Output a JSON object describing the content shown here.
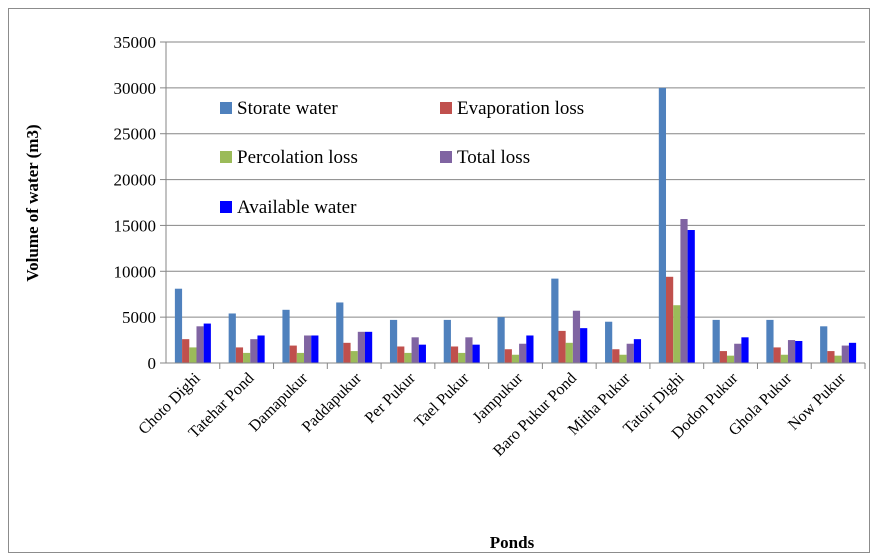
{
  "chart_data": {
    "type": "bar",
    "title": "",
    "xlabel": "Ponds",
    "ylabel": "Volume of water (m3)",
    "ylim": [
      0,
      35000
    ],
    "yticks": [
      0,
      5000,
      10000,
      15000,
      20000,
      25000,
      30000,
      35000
    ],
    "grid": true,
    "legend_position": "top-left inside plot",
    "categories": [
      "Choto Dighi",
      "Tatehar Pond",
      "Damapukur",
      "Paddapukur",
      "Per Pukur",
      "Tael Pukur",
      "Jampukur",
      "Baro Pukur Pond",
      "Mitha Pukur",
      "Tatoir Dighi",
      "Dodon Pukur",
      "Ghola Pukur",
      "Now Pukur"
    ],
    "series": [
      {
        "name": "Storate water",
        "color": "#4f81bd",
        "values": [
          8100,
          5400,
          5800,
          6600,
          4700,
          4700,
          5000,
          9200,
          4500,
          30000,
          4700,
          4700,
          4000
        ]
      },
      {
        "name": "Evaporation loss",
        "color": "#c0504d",
        "values": [
          2600,
          1700,
          1900,
          2200,
          1800,
          1800,
          1500,
          3500,
          1500,
          9400,
          1300,
          1700,
          1300
        ]
      },
      {
        "name": "Percolation loss",
        "color": "#9bbb59",
        "values": [
          1700,
          1100,
          1100,
          1300,
          1100,
          1100,
          900,
          2200,
          900,
          6300,
          800,
          900,
          800
        ]
      },
      {
        "name": "Total loss",
        "color": "#8064a2",
        "values": [
          4000,
          2600,
          3000,
          3400,
          2800,
          2800,
          2100,
          5700,
          2100,
          15700,
          2100,
          2500,
          1900
        ]
      },
      {
        "name": "Available water",
        "color": "#0000ff",
        "values": [
          4300,
          3000,
          3000,
          3400,
          2000,
          2000,
          3000,
          3800,
          2600,
          14500,
          2800,
          2400,
          2200
        ]
      }
    ]
  }
}
